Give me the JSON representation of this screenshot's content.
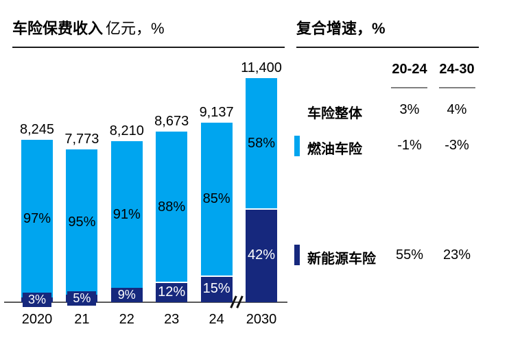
{
  "left_panel": {
    "title_bold": "车险保费收入",
    "title_unit": "亿元，%"
  },
  "right_panel": {
    "title": "复合增速，%",
    "columns": [
      "20-24",
      "24-30"
    ],
    "rows": [
      {
        "label": "车险整体",
        "swatch": null,
        "values": [
          "3%",
          "4%"
        ]
      },
      {
        "label": "燃油车险",
        "swatch": "fuel",
        "values": [
          "-1%",
          "-3%"
        ]
      },
      {
        "label": "新能源车险",
        "swatch": "nev",
        "values": [
          "55%",
          "23%"
        ]
      }
    ]
  },
  "chart_data": {
    "type": "bar",
    "stacked": true,
    "title": "车险保费收入 亿元，%",
    "unit": "亿元",
    "categories": [
      "2020",
      "21",
      "22",
      "23",
      "24",
      "2030"
    ],
    "totals": [
      8245,
      7773,
      8210,
      8673,
      9137,
      11400
    ],
    "total_labels": [
      "8,245",
      "7,773",
      "8,210",
      "8,673",
      "9,137",
      "11,400"
    ],
    "series": [
      {
        "name": "燃油车险",
        "color": "#00A5EF",
        "pct": [
          97,
          95,
          91,
          88,
          85,
          58
        ]
      },
      {
        "name": "新能源车险",
        "color": "#16287D",
        "pct": [
          3,
          5,
          9,
          12,
          15,
          42
        ]
      }
    ],
    "axis_break_after_index": 4,
    "grid": false,
    "legend_position": "right-table"
  },
  "colors": {
    "fuel": "#00A5EF",
    "nev": "#16287D",
    "axis": "#595959"
  }
}
